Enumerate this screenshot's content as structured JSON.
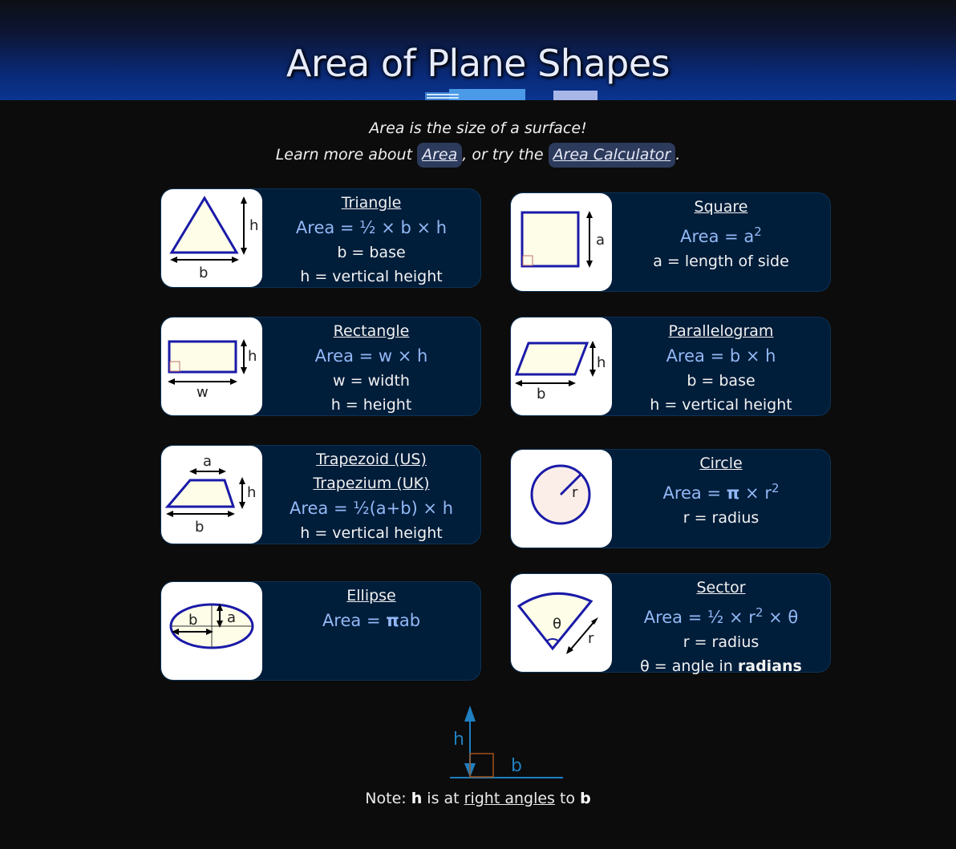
{
  "header": {
    "title": "Area of Plane Shapes"
  },
  "intro": {
    "line1": "Area is the size of a surface!",
    "line2_prefix": "Learn more about",
    "link_area": "Area",
    "line2_mid": ", or try the",
    "link_calculator": "Area Calculator",
    "line2_suffix": "."
  },
  "shapes": {
    "triangle": {
      "name": "Triangle",
      "formula": "Area = ½ × b × h",
      "defs": [
        "b = base",
        "h = vertical height"
      ],
      "labels": {
        "h": "h",
        "b": "b"
      }
    },
    "square": {
      "name": "Square",
      "formula_pre": "Area = a",
      "formula_sup": "2",
      "defs": [
        "a = length of side"
      ],
      "labels": {
        "a": "a"
      }
    },
    "rectangle": {
      "name": "Rectangle",
      "formula": "Area = w × h",
      "defs": [
        "w = width",
        "h = height"
      ],
      "labels": {
        "h": "h",
        "w": "w"
      }
    },
    "parallelogram": {
      "name": "Parallelogram",
      "formula": "Area = b × h",
      "defs": [
        "b = base",
        "h = vertical height"
      ],
      "labels": {
        "h": "h",
        "b": "b"
      }
    },
    "trapezoid": {
      "name_us": "Trapezoid (US)",
      "name_uk": "Trapezium (UK)",
      "formula": "Area = ½(a+b) × h",
      "defs": [
        "h = vertical height"
      ],
      "labels": {
        "a": "a",
        "b": "b",
        "h": "h"
      }
    },
    "circle": {
      "name": "Circle",
      "formula_pre": "Area = ",
      "pi": "π",
      "formula_mid": " × r",
      "formula_sup": "2",
      "defs": [
        "r = radius"
      ],
      "labels": {
        "r": "r"
      }
    },
    "ellipse": {
      "name": "Ellipse",
      "formula_pre": "Area = ",
      "pi": "π",
      "formula_post": "ab",
      "labels": {
        "a": "a",
        "b": "b"
      }
    },
    "sector": {
      "name": "Sector",
      "formula_pre": "Area = ½ × r",
      "formula_sup": "2",
      "formula_post": " × θ",
      "defs": [
        "r = radius"
      ],
      "def2_pre": "θ = angle in ",
      "def2_bold": "radians",
      "labels": {
        "theta": "θ",
        "r": "r"
      }
    }
  },
  "note": {
    "diagram": {
      "h": "h",
      "b": "b"
    },
    "prefix": "Note: ",
    "h": "h",
    "mid1": " is at ",
    "link": "right angles",
    "mid2": " to ",
    "b": "b"
  },
  "colors": {
    "header_blue": "#0a3590",
    "card_bg": "#001d3a",
    "formula_blue": "#93b8f5",
    "shape_stroke": "#1a1aa8",
    "shape_fill": "#fdfde8"
  }
}
